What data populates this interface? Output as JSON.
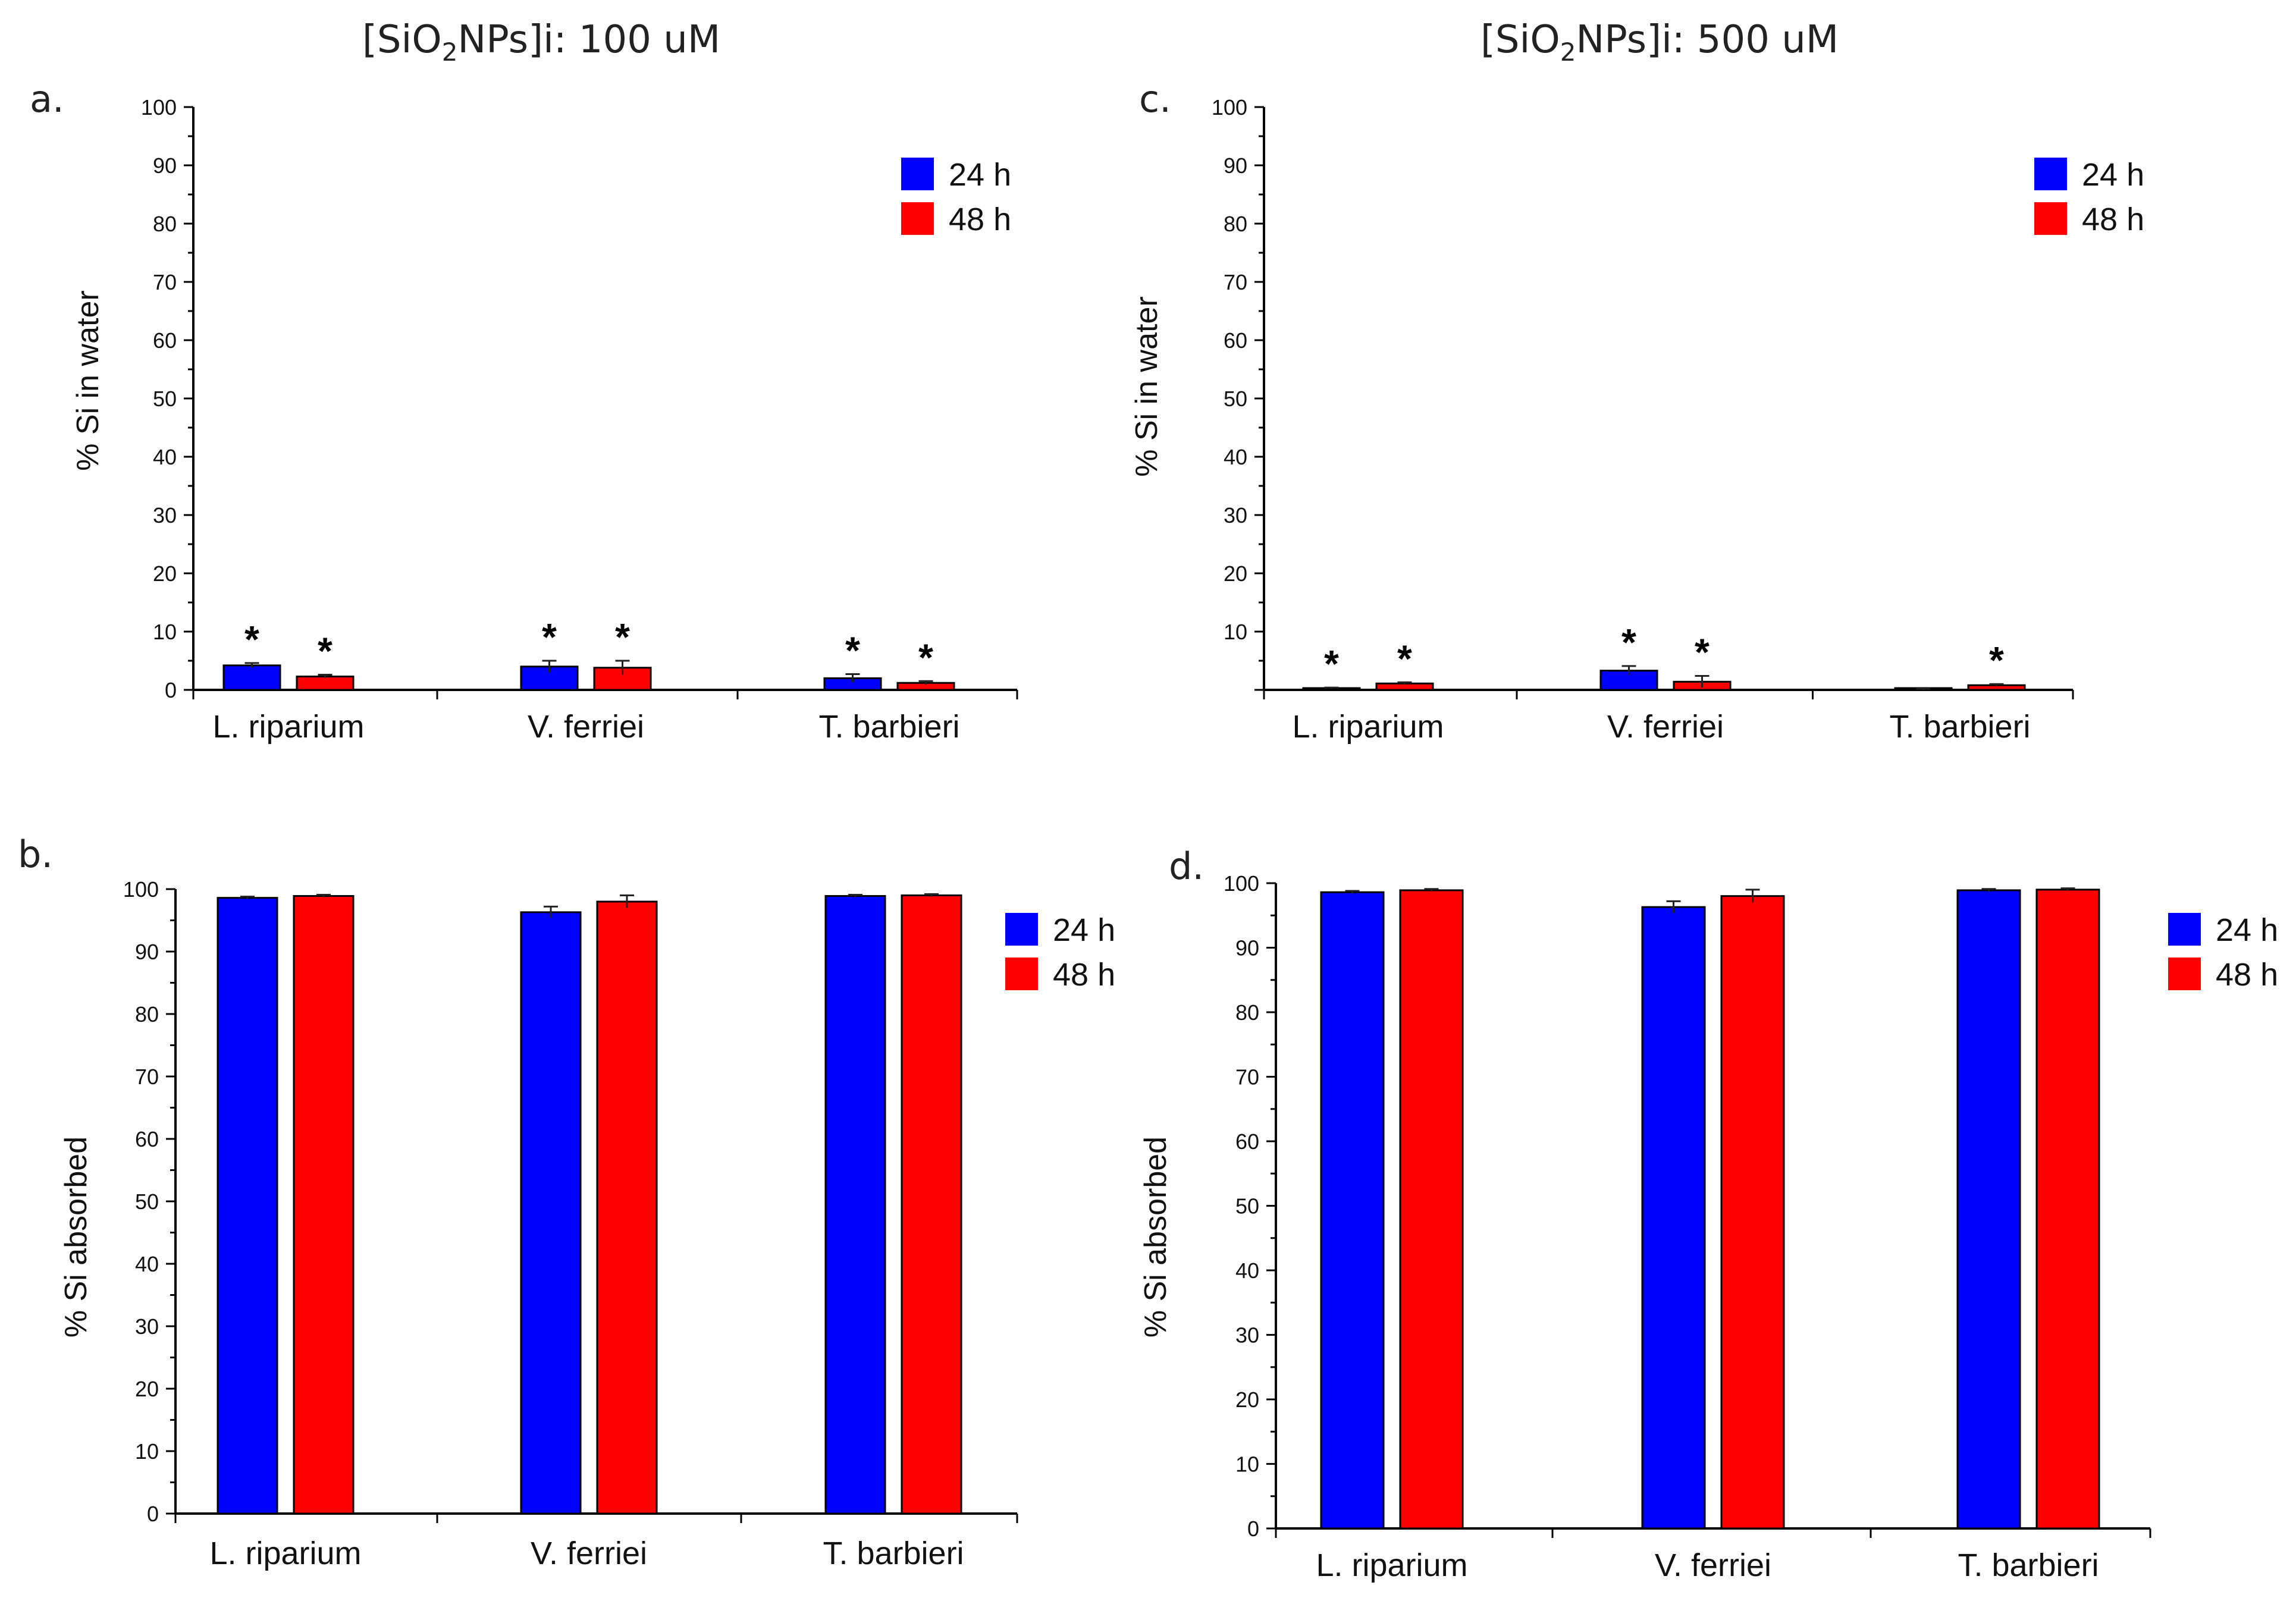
{
  "column_titles": [
    {
      "prefix": "[SiO",
      "sub": "2",
      "suffix": "NPs]i: 100 uM"
    },
    {
      "prefix": "[SiO",
      "sub": "2",
      "suffix": "NPs]i: 500 uM"
    }
  ],
  "panel_letters": {
    "a": "a.",
    "b": "b.",
    "c": "c.",
    "d": "d."
  },
  "colors": {
    "h24": "#0000ff",
    "h48": "#ff0000",
    "axis": "#000000"
  },
  "chart_data": [
    {
      "id": "a",
      "type": "bar",
      "title": "[SiO2NPs]i: 100 uM",
      "xlabel": "",
      "ylabel": "% Si in water",
      "categories": [
        "L. riparium",
        "V. ferriei",
        "T. barbieri"
      ],
      "ylim": [
        0,
        100
      ],
      "yticks": [
        "0",
        "10",
        "20",
        "30",
        "40",
        "50",
        "60",
        "70",
        "80",
        "90",
        "100"
      ],
      "legend": {
        "placement": "top-right",
        "entries": [
          "24 h",
          "48 h"
        ]
      },
      "series": [
        {
          "name": "24 h",
          "values": [
            4.2,
            4.0,
            2.0
          ],
          "errors": [
            0.4,
            1.0,
            0.7
          ]
        },
        {
          "name": "48 h",
          "values": [
            2.3,
            3.8,
            1.2
          ],
          "errors": [
            0.3,
            1.2,
            0.3
          ]
        }
      ],
      "annotations": {
        "marker": "*",
        "significant": [
          [
            true,
            true,
            true
          ],
          [
            true,
            true,
            true
          ]
        ]
      }
    },
    {
      "id": "b",
      "type": "bar",
      "title": "",
      "xlabel": "",
      "ylabel": "% Si absorbed",
      "categories": [
        "L. riparium",
        "V. ferriei",
        "T. barbieri"
      ],
      "ylim": [
        0,
        100
      ],
      "yticks": [
        "0",
        "10",
        "20",
        "30",
        "40",
        "50",
        "60",
        "70",
        "80",
        "90",
        "100"
      ],
      "legend": {
        "placement": "top-right-outside",
        "entries": [
          "24 h",
          "48 h"
        ]
      },
      "series": [
        {
          "name": "24 h",
          "values": [
            98.6,
            96.3,
            98.9
          ],
          "errors": [
            0.2,
            0.9,
            0.2
          ]
        },
        {
          "name": "48 h",
          "values": [
            98.9,
            98.0,
            99.0
          ],
          "errors": [
            0.2,
            1.0,
            0.2
          ]
        }
      ]
    },
    {
      "id": "c",
      "type": "bar",
      "title": "[SiO2NPs]i: 500 uM",
      "xlabel": "",
      "ylabel": "% Si in water",
      "categories": [
        "L. riparium",
        "V. ferriei",
        "T. barbieri"
      ],
      "ylim": [
        0,
        100
      ],
      "yticks": [
        "",
        "10",
        "20",
        "30",
        "40",
        "50",
        "60",
        "70",
        "80",
        "90",
        "100"
      ],
      "legend": {
        "placement": "top-right",
        "entries": [
          "24 h",
          "48 h"
        ]
      },
      "series": [
        {
          "name": "24 h",
          "values": [
            0.3,
            3.3,
            0.1
          ],
          "errors": [
            0.1,
            0.8,
            0.1
          ]
        },
        {
          "name": "48 h",
          "values": [
            1.1,
            1.4,
            0.8
          ],
          "errors": [
            0.2,
            1.0,
            0.2
          ]
        }
      ],
      "annotations": {
        "marker": "*",
        "significant": [
          [
            true,
            true,
            false
          ],
          [
            true,
            true,
            true
          ]
        ]
      }
    },
    {
      "id": "d",
      "type": "bar",
      "title": "",
      "xlabel": "",
      "ylabel": "% Si absorbed",
      "categories": [
        "L. riparium",
        "V. ferriei",
        "T. barbieri"
      ],
      "ylim": [
        0,
        100
      ],
      "yticks": [
        "0",
        "10",
        "20",
        "30",
        "40",
        "50",
        "60",
        "70",
        "80",
        "90",
        "100"
      ],
      "legend": {
        "placement": "top-right-outside",
        "entries": [
          "24 h",
          "48 h"
        ]
      },
      "series": [
        {
          "name": "24 h",
          "values": [
            98.6,
            96.3,
            98.9
          ],
          "errors": [
            0.2,
            0.9,
            0.2
          ]
        },
        {
          "name": "48 h",
          "values": [
            98.9,
            98.0,
            99.0
          ],
          "errors": [
            0.2,
            1.0,
            0.2
          ]
        }
      ]
    }
  ]
}
